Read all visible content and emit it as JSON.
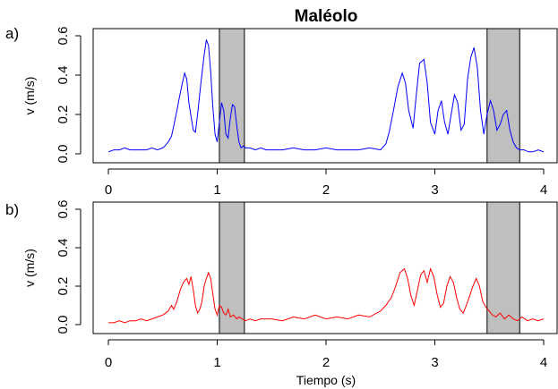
{
  "figure": {
    "title": "Maléolo",
    "xlabel": "Tiempo (s)"
  },
  "chart_data": [
    {
      "type": "line",
      "panel_tag": "a)",
      "title": "Maléolo",
      "xlabel": "",
      "ylabel": "v (m/s)",
      "xlim": [
        0,
        4
      ],
      "ylim": [
        0,
        0.6
      ],
      "x_ticks": [
        "0",
        "1",
        "2",
        "3",
        "4"
      ],
      "y_ticks": [
        "0.0",
        "0.2",
        "0.4",
        "0.6"
      ],
      "grid": false,
      "shaded_intervals": [
        [
          1.02,
          1.25
        ],
        [
          3.48,
          3.78
        ]
      ],
      "series": [
        {
          "color": "#0000ff",
          "x": [
            0.0,
            0.05,
            0.1,
            0.15,
            0.2,
            0.25,
            0.3,
            0.35,
            0.4,
            0.45,
            0.5,
            0.52,
            0.55,
            0.58,
            0.6,
            0.63,
            0.65,
            0.68,
            0.7,
            0.72,
            0.74,
            0.76,
            0.78,
            0.8,
            0.82,
            0.85,
            0.88,
            0.9,
            0.92,
            0.94,
            0.96,
            0.98,
            1.0,
            1.02,
            1.04,
            1.06,
            1.08,
            1.1,
            1.12,
            1.14,
            1.16,
            1.18,
            1.2,
            1.22,
            1.24,
            1.26,
            1.3,
            1.35,
            1.4,
            1.45,
            1.5,
            1.6,
            1.7,
            1.8,
            1.9,
            2.0,
            2.1,
            2.2,
            2.3,
            2.4,
            2.5,
            2.55,
            2.58,
            2.62,
            2.66,
            2.7,
            2.73,
            2.76,
            2.8,
            2.83,
            2.86,
            2.9,
            2.93,
            2.96,
            3.0,
            3.03,
            3.06,
            3.09,
            3.12,
            3.15,
            3.18,
            3.21,
            3.24,
            3.27,
            3.3,
            3.33,
            3.36,
            3.39,
            3.42,
            3.45,
            3.48,
            3.51,
            3.54,
            3.57,
            3.6,
            3.63,
            3.66,
            3.69,
            3.72,
            3.75,
            3.78,
            3.82,
            3.86,
            3.9,
            3.95,
            4.0
          ],
          "y": [
            0.01,
            0.02,
            0.02,
            0.03,
            0.02,
            0.02,
            0.02,
            0.02,
            0.03,
            0.02,
            0.03,
            0.04,
            0.06,
            0.09,
            0.14,
            0.22,
            0.28,
            0.36,
            0.41,
            0.38,
            0.26,
            0.19,
            0.12,
            0.11,
            0.2,
            0.36,
            0.5,
            0.58,
            0.55,
            0.42,
            0.24,
            0.1,
            0.06,
            0.16,
            0.26,
            0.22,
            0.1,
            0.08,
            0.18,
            0.25,
            0.24,
            0.14,
            0.06,
            0.03,
            0.04,
            0.03,
            0.03,
            0.02,
            0.03,
            0.02,
            0.02,
            0.02,
            0.03,
            0.02,
            0.02,
            0.03,
            0.02,
            0.02,
            0.02,
            0.03,
            0.02,
            0.05,
            0.11,
            0.22,
            0.34,
            0.41,
            0.36,
            0.22,
            0.13,
            0.3,
            0.46,
            0.48,
            0.36,
            0.16,
            0.1,
            0.22,
            0.27,
            0.16,
            0.1,
            0.2,
            0.3,
            0.26,
            0.12,
            0.15,
            0.38,
            0.49,
            0.54,
            0.44,
            0.22,
            0.1,
            0.2,
            0.27,
            0.22,
            0.12,
            0.15,
            0.2,
            0.22,
            0.12,
            0.06,
            0.03,
            0.02,
            0.02,
            0.01,
            0.01,
            0.02,
            0.01
          ]
        }
      ]
    },
    {
      "type": "line",
      "panel_tag": "b)",
      "title": "",
      "xlabel": "Tiempo (s)",
      "ylabel": "v (m/s)",
      "xlim": [
        0,
        4
      ],
      "ylim": [
        0,
        0.6
      ],
      "x_ticks": [
        "0",
        "1",
        "2",
        "3",
        "4"
      ],
      "y_ticks": [
        "0.0",
        "0.2",
        "0.4",
        "0.6"
      ],
      "grid": false,
      "shaded_intervals": [
        [
          1.02,
          1.25
        ],
        [
          3.48,
          3.78
        ]
      ],
      "series": [
        {
          "color": "#ff0000",
          "x": [
            0.0,
            0.05,
            0.1,
            0.15,
            0.2,
            0.25,
            0.3,
            0.35,
            0.4,
            0.45,
            0.5,
            0.55,
            0.58,
            0.6,
            0.63,
            0.66,
            0.69,
            0.72,
            0.74,
            0.76,
            0.78,
            0.8,
            0.82,
            0.84,
            0.86,
            0.88,
            0.9,
            0.92,
            0.94,
            0.96,
            0.98,
            1.0,
            1.02,
            1.04,
            1.06,
            1.08,
            1.1,
            1.12,
            1.15,
            1.18,
            1.2,
            1.23,
            1.26,
            1.3,
            1.35,
            1.4,
            1.5,
            1.6,
            1.7,
            1.8,
            1.9,
            2.0,
            2.1,
            2.2,
            2.3,
            2.4,
            2.5,
            2.55,
            2.6,
            2.64,
            2.68,
            2.72,
            2.75,
            2.78,
            2.81,
            2.84,
            2.87,
            2.9,
            2.93,
            2.96,
            2.99,
            3.02,
            3.05,
            3.08,
            3.11,
            3.14,
            3.17,
            3.2,
            3.23,
            3.26,
            3.29,
            3.32,
            3.35,
            3.38,
            3.41,
            3.44,
            3.47,
            3.5,
            3.53,
            3.56,
            3.6,
            3.64,
            3.68,
            3.72,
            3.76,
            3.8,
            3.85,
            3.9,
            3.95,
            4.0
          ],
          "y": [
            0.01,
            0.01,
            0.02,
            0.01,
            0.02,
            0.02,
            0.03,
            0.02,
            0.03,
            0.04,
            0.05,
            0.07,
            0.1,
            0.08,
            0.12,
            0.18,
            0.22,
            0.24,
            0.21,
            0.25,
            0.18,
            0.1,
            0.06,
            0.08,
            0.12,
            0.2,
            0.24,
            0.27,
            0.24,
            0.16,
            0.08,
            0.05,
            0.1,
            0.09,
            0.06,
            0.05,
            0.08,
            0.04,
            0.05,
            0.03,
            0.04,
            0.03,
            0.02,
            0.03,
            0.02,
            0.03,
            0.03,
            0.02,
            0.04,
            0.03,
            0.05,
            0.03,
            0.04,
            0.03,
            0.05,
            0.04,
            0.07,
            0.1,
            0.14,
            0.2,
            0.27,
            0.29,
            0.24,
            0.15,
            0.1,
            0.18,
            0.26,
            0.28,
            0.22,
            0.29,
            0.25,
            0.16,
            0.09,
            0.11,
            0.2,
            0.25,
            0.22,
            0.14,
            0.08,
            0.06,
            0.1,
            0.15,
            0.2,
            0.24,
            0.2,
            0.12,
            0.09,
            0.07,
            0.05,
            0.04,
            0.06,
            0.03,
            0.05,
            0.03,
            0.02,
            0.04,
            0.02,
            0.03,
            0.02,
            0.03
          ]
        }
      ]
    }
  ]
}
